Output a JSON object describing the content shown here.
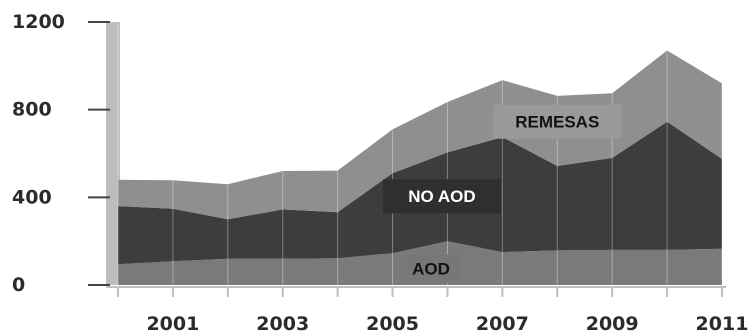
{
  "chart_data": {
    "type": "area",
    "stacked": true,
    "x": [
      2000,
      2001,
      2002,
      2003,
      2004,
      2005,
      2006,
      2007,
      2008,
      2009,
      2010,
      2011
    ],
    "series": [
      {
        "name": "AOD",
        "values": [
          95,
          108,
          120,
          120,
          122,
          145,
          200,
          150,
          158,
          160,
          160,
          165
        ],
        "color": "#7a7a7a"
      },
      {
        "name": "NO AOD",
        "values": [
          265,
          240,
          180,
          225,
          210,
          365,
          405,
          525,
          385,
          420,
          585,
          410
        ],
        "color": "#3d3d3d"
      },
      {
        "name": "REMESAS",
        "values": [
          120,
          130,
          160,
          175,
          190,
          200,
          230,
          260,
          320,
          295,
          325,
          345
        ],
        "color": "#8f8f8f"
      }
    ],
    "series_labels": [
      {
        "series": "AOD",
        "text": "AOD",
        "box_color": "#777777",
        "text_color": "#111111"
      },
      {
        "series": "NO AOD",
        "text": "NO AOD",
        "box_color": "#2f2f2f",
        "text_color": "#ffffff"
      },
      {
        "series": "REMESAS",
        "text": "REMESAS",
        "box_color": "#9a9a9a",
        "text_color": "#111111"
      }
    ],
    "y_ticks": [
      "0",
      "400",
      "800",
      "1200"
    ],
    "y_tick_values": [
      0,
      400,
      800,
      1200
    ],
    "x_ticks": [
      "2001",
      "2003",
      "2005",
      "2007",
      "2009",
      "2011"
    ],
    "x_tick_values": [
      2001,
      2003,
      2005,
      2007,
      2009,
      2011
    ],
    "ylim": [
      0,
      1200
    ],
    "xlim": [
      2000,
      2011
    ],
    "grid": "vertical",
    "axis_color": "#bdbdbd"
  }
}
